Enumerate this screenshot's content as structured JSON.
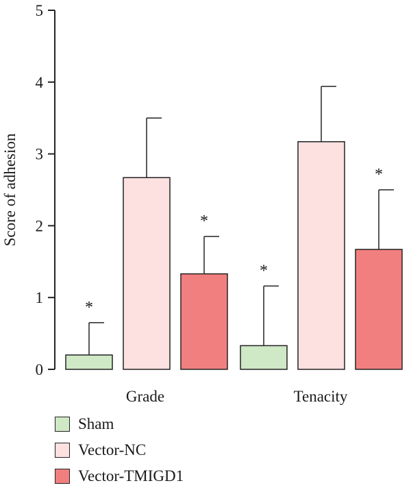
{
  "chart_data": {
    "type": "bar",
    "categories": [
      "Grade",
      "Tenacity"
    ],
    "series": [
      {
        "name": "Sham",
        "color": "#cfe8c6",
        "values": [
          0.2,
          0.33
        ],
        "errors": [
          0.45,
          0.83
        ],
        "significant": [
          true,
          true
        ]
      },
      {
        "name": "Vector-NC",
        "color": "#fde0e0",
        "values": [
          2.67,
          3.17
        ],
        "errors": [
          0.83,
          0.77
        ],
        "significant": [
          false,
          false
        ]
      },
      {
        "name": "Vector-TMIGD1",
        "color": "#f27f7f",
        "values": [
          1.33,
          1.67
        ],
        "errors": [
          0.52,
          0.83
        ],
        "significant": [
          true,
          true
        ]
      }
    ],
    "ylabel": "Score of adhesion",
    "xlabel": "",
    "ylim": [
      0,
      5
    ],
    "yticks": [
      0,
      1,
      2,
      3,
      4,
      5
    ],
    "significance_marker": "*",
    "grid": false,
    "legend_position": "bottom-left"
  }
}
